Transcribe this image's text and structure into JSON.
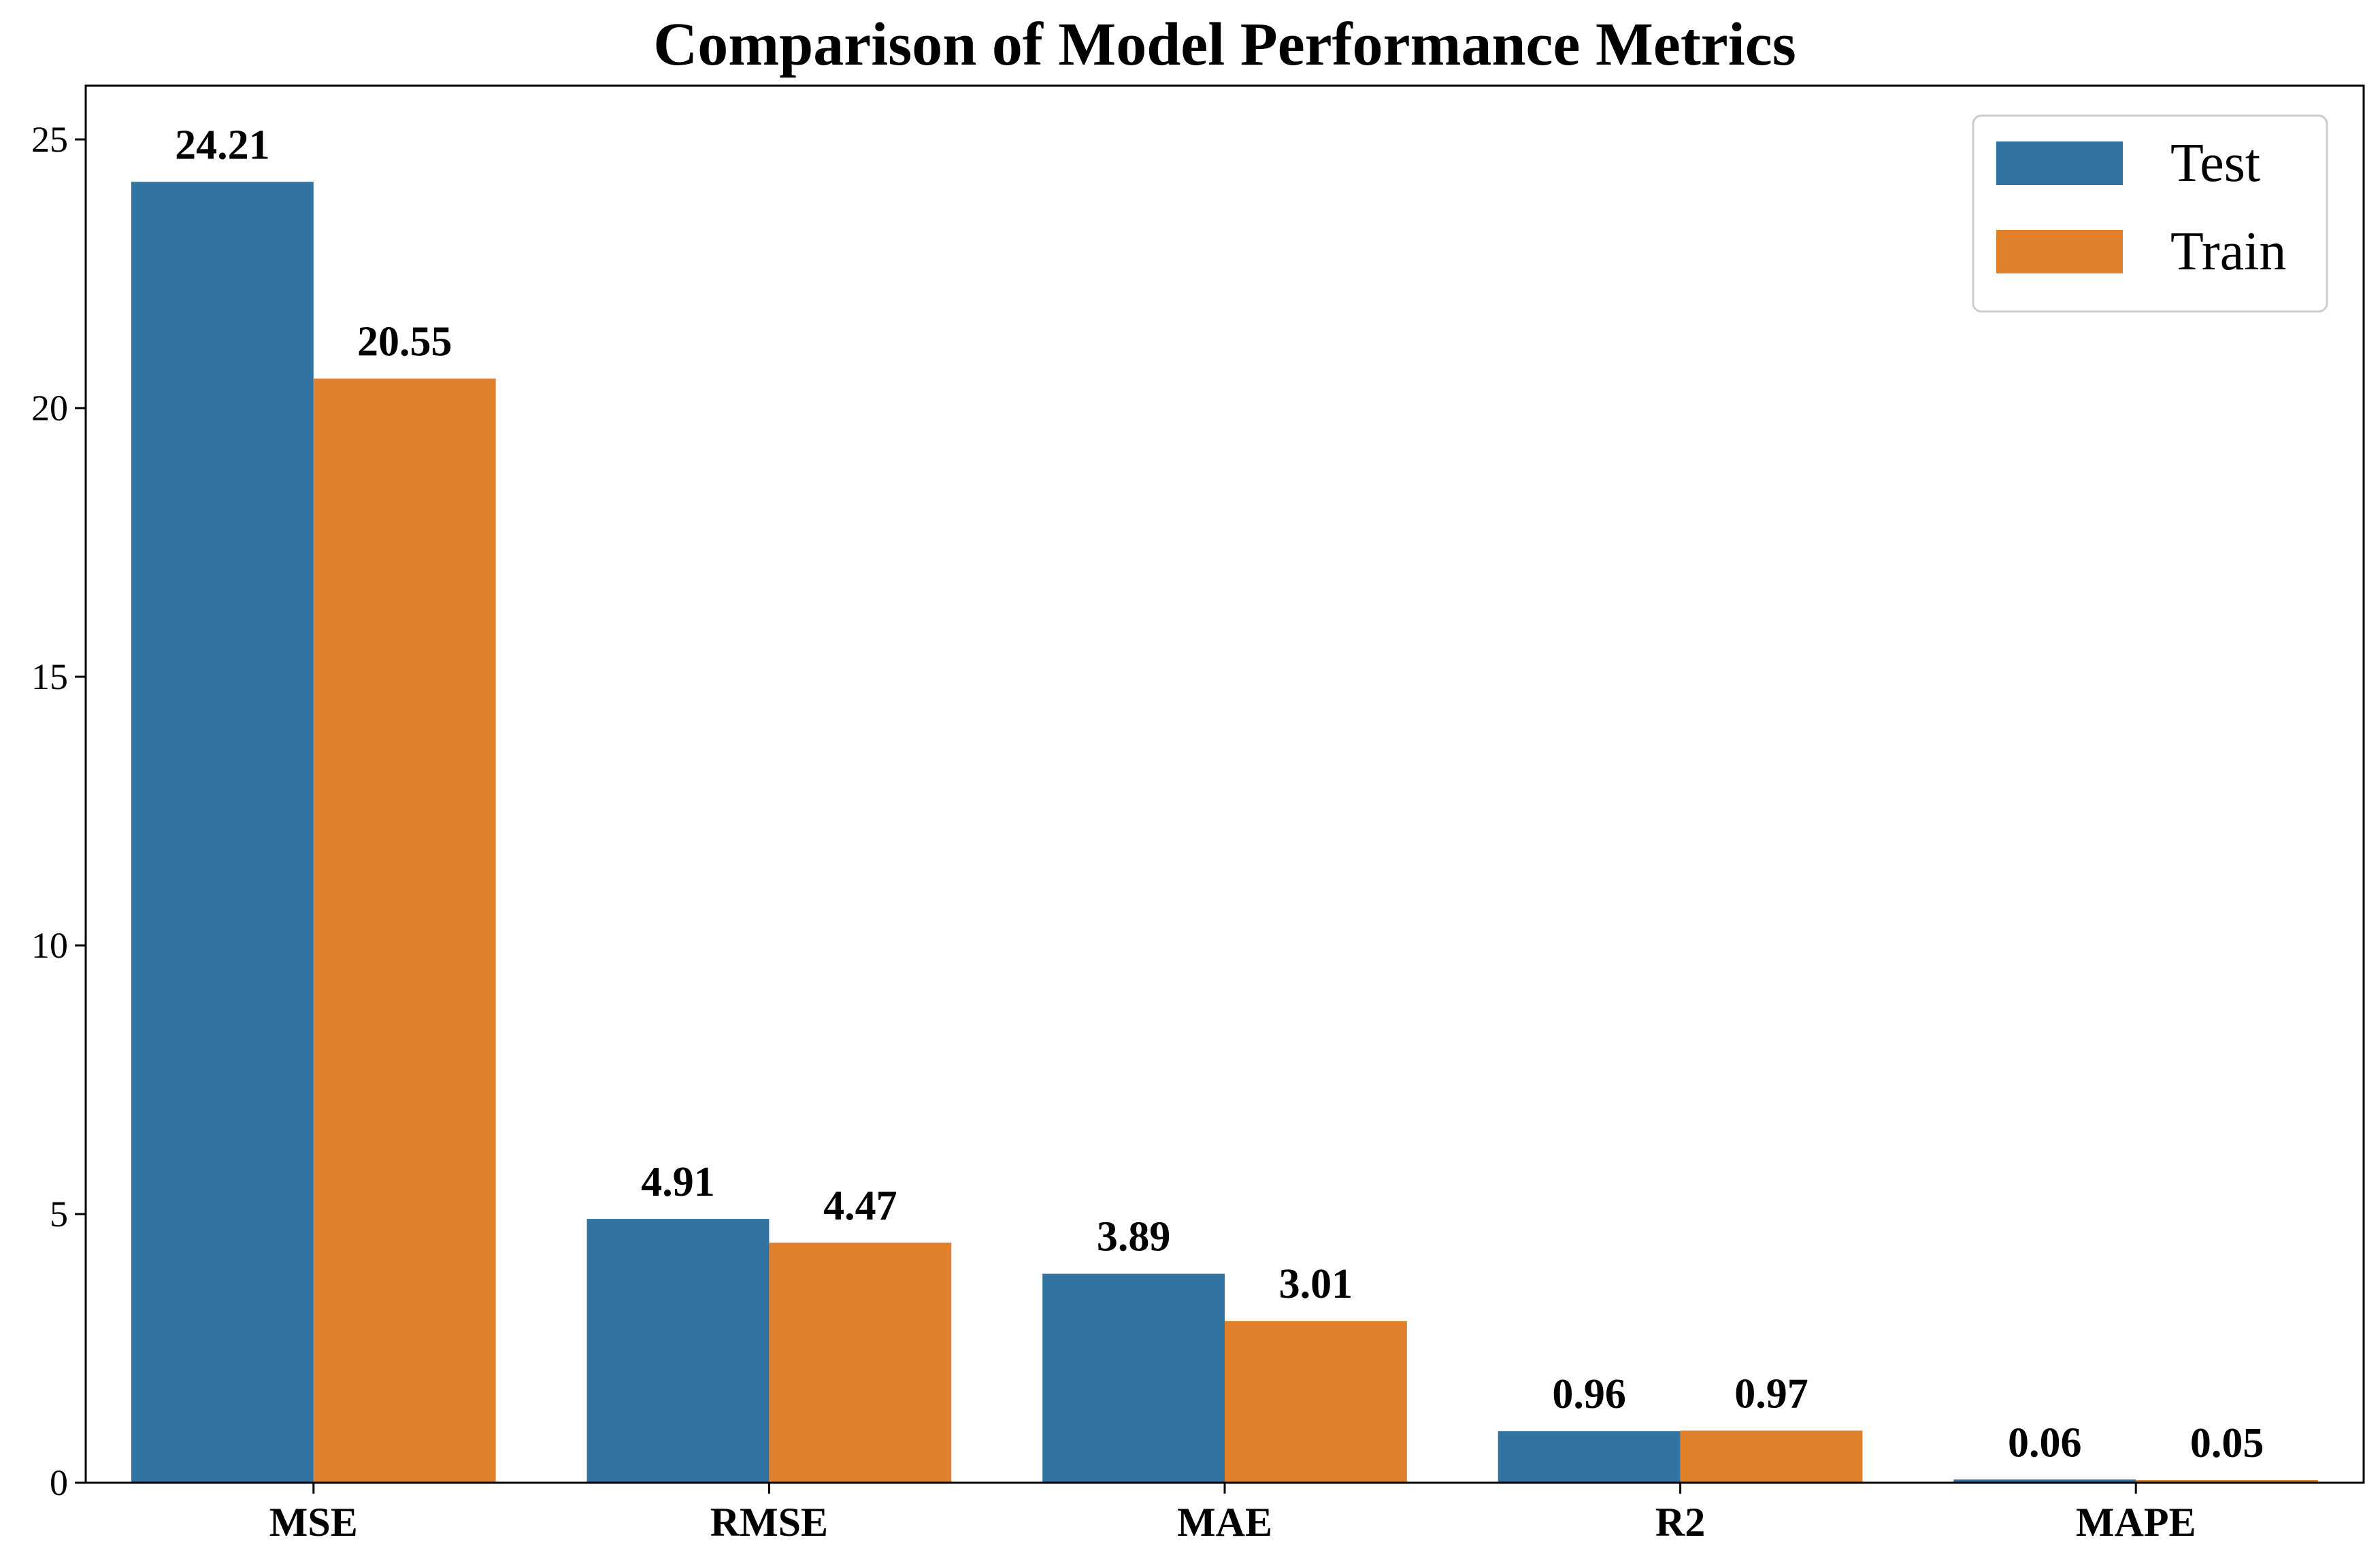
{
  "chart_data": {
    "type": "bar",
    "title": "Comparison of Model Performance Metrics",
    "xlabel": "",
    "ylabel": "",
    "categories": [
      "MSE",
      "RMSE",
      "MAE",
      "R2",
      "MAPE"
    ],
    "series": [
      {
        "name": "Test",
        "color": "#3274a1",
        "values": [
          24.21,
          4.91,
          3.89,
          0.96,
          0.06
        ],
        "labels": [
          "24.21",
          "4.91",
          "3.89",
          "0.96",
          "0.06"
        ]
      },
      {
        "name": "Train",
        "color": "#e1812c",
        "values": [
          20.55,
          4.47,
          3.01,
          0.97,
          0.05
        ],
        "labels": [
          "20.55",
          "4.47",
          "3.01",
          "0.97",
          "0.05"
        ]
      }
    ],
    "ylim": [
      0,
      26
    ],
    "yticks": [
      0,
      5,
      10,
      15,
      20,
      25
    ],
    "ytick_labels": [
      "0",
      "5",
      "10",
      "15",
      "20",
      "25"
    ],
    "grid": false,
    "legend_position": "top-right"
  }
}
